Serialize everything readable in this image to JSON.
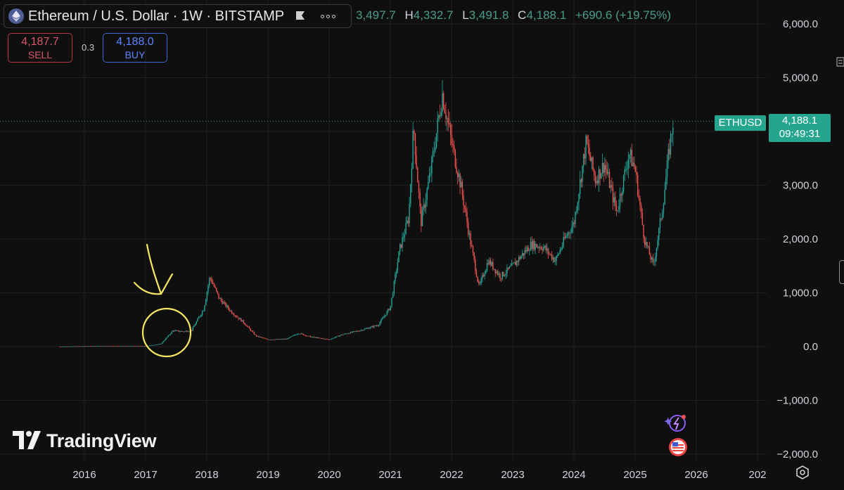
{
  "header": {
    "symbol_title": "Ethereum / U.S. Dollar · 1W · BITSTAMP",
    "ohlc": [
      {
        "key": "",
        "value": "3,497.7"
      },
      {
        "key": "H",
        "value": "4,332.7"
      },
      {
        "key": "L",
        "value": "3,491.8"
      },
      {
        "key": "C",
        "value": "4,188.1"
      }
    ],
    "change": "+690.6 (+19.75%)"
  },
  "trade": {
    "sell_price": "4,187.7",
    "sell_label": "SELL",
    "spread": "0.3",
    "buy_price": "4,188.0",
    "buy_label": "BUY"
  },
  "price_tag": {
    "symbol": "ETHUSD",
    "price": "4,188.1",
    "countdown": "09:49:31"
  },
  "brand": {
    "name": "TradingView"
  },
  "colors": {
    "background": "#0f0f0f",
    "up": "#26a69a",
    "down": "#ef5350",
    "annotation": "#f5e663"
  },
  "icons": [
    "ethereum-logo-icon",
    "flag-icon",
    "more-options-icon",
    "settings-icon",
    "ai-assistant-icon",
    "us-flag-icon"
  ],
  "chart_data": {
    "type": "line",
    "x": [
      2015.6,
      2016.0,
      2016.5,
      2017.0,
      2017.25,
      2017.45,
      2017.6,
      2017.75,
      2017.95,
      2018.05,
      2018.2,
      2018.4,
      2018.6,
      2018.8,
      2019.0,
      2019.3,
      2019.5,
      2019.7,
      2020.0,
      2020.2,
      2020.5,
      2020.8,
      2021.0,
      2021.15,
      2021.3,
      2021.38,
      2021.5,
      2021.65,
      2021.85,
      2022.0,
      2022.15,
      2022.3,
      2022.45,
      2022.6,
      2022.8,
      2023.0,
      2023.3,
      2023.5,
      2023.7,
      2023.85,
      2024.0,
      2024.2,
      2024.35,
      2024.5,
      2024.7,
      2024.9,
      2025.0,
      2025.15,
      2025.3,
      2025.45,
      2025.55,
      2025.62
    ],
    "series": [
      {
        "values": [
          1,
          8,
          12,
          10,
          50,
          300,
          280,
          300,
          700,
          1300,
          900,
          650,
          450,
          200,
          130,
          140,
          250,
          180,
          130,
          220,
          300,
          400,
          730,
          1800,
          2400,
          4100,
          2300,
          3200,
          4700,
          3800,
          3000,
          2000,
          1100,
          1600,
          1300,
          1500,
          1900,
          1850,
          1600,
          2000,
          2300,
          3800,
          3100,
          3400,
          2500,
          3600,
          3300,
          2000,
          1500,
          2600,
          3600,
          4188
        ]
      }
    ],
    "ylim": [
      -2000,
      6000
    ],
    "yticks": [
      "6,000.0",
      "5,000.0",
      "4,000.0",
      "3,000.0",
      "2,000.0",
      "1,000.0",
      "0.0",
      "−1,000.0",
      "−2,000.0"
    ],
    "xticks": [
      "2016",
      "2017",
      "2018",
      "2019",
      "2020",
      "2021",
      "2022",
      "2023",
      "2024",
      "2025",
      "2026",
      "202"
    ],
    "grid": true,
    "annotations": [
      "yellow circle around 2017",
      "yellow hand-drawn arrow pointing to circle"
    ]
  }
}
